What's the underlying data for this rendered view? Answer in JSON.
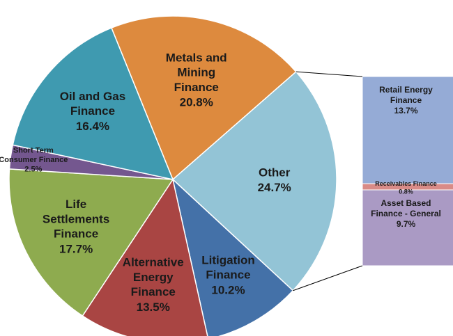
{
  "chart_data": [
    {
      "type": "pie",
      "categories": [
        "Metals and Mining Finance",
        "Other",
        "Litigation Finance",
        "Alternative Energy Finance",
        "Life Settlements Finance",
        "Short Term Consumer Finance",
        "Oil and Gas Finance"
      ],
      "values": [
        20.8,
        24.7,
        10.2,
        13.5,
        17.7,
        2.5,
        16.4
      ],
      "value_labels": [
        "20.8%",
        "24.7%",
        "10.2%",
        "13.5%",
        "17.7%",
        "2.5%",
        "16.4%"
      ],
      "colors": [
        "#dd8a3e",
        "#93c4d6",
        "#4471a8",
        "#a94543",
        "#8eab4f",
        "#74578f",
        "#3f9ab0"
      ]
    },
    {
      "type": "bar",
      "categories": [
        "Retail Energy Finance",
        "Receivables Finance",
        "Asset Based Finance - General"
      ],
      "values": [
        13.7,
        0.8,
        9.7
      ],
      "value_labels": [
        "13.7%",
        "0.8%",
        "9.7%"
      ],
      "colors": [
        "#95abd6",
        "#d98b87",
        "#aa9ac4"
      ]
    }
  ]
}
